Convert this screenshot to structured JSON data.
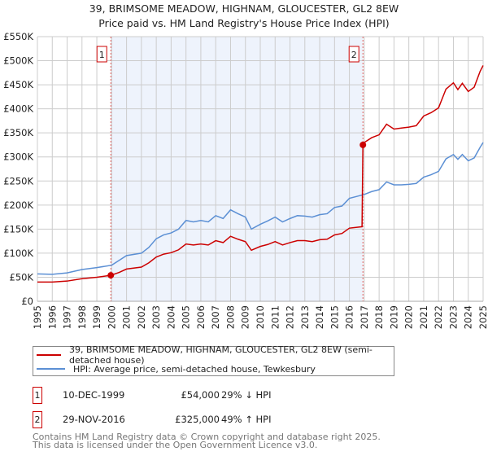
{
  "chart_data": {
    "type": "line",
    "title": "39, BRIMSOME MEADOW, HIGHNAM, GLOUCESTER, GL2 8EW",
    "subtitle": "Price paid vs. HM Land Registry's House Price Index (HPI)",
    "xlim": [
      1995,
      2025
    ],
    "ylim": [
      0,
      550000
    ],
    "x_ticks": [
      "1995",
      "1996",
      "1997",
      "1998",
      "1999",
      "2000",
      "2001",
      "2002",
      "2003",
      "2004",
      "2005",
      "2006",
      "2007",
      "2008",
      "2009",
      "2010",
      "2011",
      "2012",
      "2013",
      "2014",
      "2015",
      "2016",
      "2017",
      "2018",
      "2019",
      "2020",
      "2021",
      "2022",
      "2023",
      "2024",
      "2025"
    ],
    "y_ticks": [
      {
        "v": 0,
        "label": "£0"
      },
      {
        "v": 50000,
        "label": "£50K"
      },
      {
        "v": 100000,
        "label": "£100K"
      },
      {
        "v": 150000,
        "label": "£150K"
      },
      {
        "v": 200000,
        "label": "£200K"
      },
      {
        "v": 250000,
        "label": "£250K"
      },
      {
        "v": 300000,
        "label": "£300K"
      },
      {
        "v": 350000,
        "label": "£350K"
      },
      {
        "v": 400000,
        "label": "£400K"
      },
      {
        "v": 450000,
        "label": "£450K"
      },
      {
        "v": 500000,
        "label": "£500K"
      },
      {
        "v": 550000,
        "label": "£550K"
      }
    ],
    "grid": true,
    "shaded_range": [
      1999.94,
      2016.91
    ],
    "series": [
      {
        "name": "39, BRIMSOME MEADOW, HIGHNAM, GLOUCESTER, GL2 8EW (semi-detached house)",
        "color": "#cc0000",
        "x": [
          1995,
          1996,
          1997,
          1998,
          1999,
          1999.94,
          2000.5,
          2001,
          2002,
          2002.5,
          2003,
          2003.5,
          2004,
          2004.5,
          2005,
          2005.5,
          2006,
          2006.5,
          2007,
          2007.5,
          2008,
          2008.5,
          2009,
          2009.4,
          2010,
          2010.5,
          2011,
          2011.5,
          2012,
          2012.5,
          2013,
          2013.5,
          2014,
          2014.5,
          2015,
          2015.5,
          2016,
          2016.85,
          2016.91,
          2017,
          2017.5,
          2018,
          2018.5,
          2019,
          2019.5,
          2020,
          2020.5,
          2021,
          2021.5,
          2022,
          2022.5,
          2023,
          2023.3,
          2023.6,
          2024,
          2024.4,
          2024.8,
          2025
        ],
        "y": [
          40000,
          40000,
          42000,
          47000,
          50000,
          54000,
          60000,
          67000,
          71000,
          80000,
          92000,
          98000,
          101000,
          107000,
          119000,
          117000,
          119000,
          117000,
          126000,
          122000,
          135000,
          129000,
          124000,
          106000,
          114000,
          118000,
          124000,
          117000,
          122000,
          126000,
          126000,
          124000,
          128000,
          129000,
          138000,
          141000,
          152000,
          155000,
          325000,
          330000,
          340000,
          346000,
          368000,
          358000,
          360000,
          362000,
          365000,
          385000,
          392000,
          402000,
          441000,
          454000,
          440000,
          453000,
          436000,
          445000,
          478000,
          490000
        ]
      },
      {
        "name": "HPI: Average price, semi-detached house, Tewkesbury",
        "color": "#5b8fd4",
        "x": [
          1995,
          1996,
          1997,
          1998,
          1999,
          2000,
          2000.5,
          2001,
          2002,
          2002.5,
          2003,
          2003.5,
          2004,
          2004.5,
          2005,
          2005.5,
          2006,
          2006.5,
          2007,
          2007.5,
          2008,
          2008.5,
          2009,
          2009.4,
          2010,
          2010.5,
          2011,
          2011.5,
          2012,
          2012.5,
          2013,
          2013.5,
          2014,
          2014.5,
          2015,
          2015.5,
          2016,
          2016.5,
          2017,
          2017.5,
          2018,
          2018.5,
          2019,
          2019.5,
          2020,
          2020.5,
          2021,
          2021.5,
          2022,
          2022.5,
          2023,
          2023.3,
          2023.6,
          2024,
          2024.4,
          2024.8,
          2025
        ],
        "y": [
          57000,
          56000,
          59000,
          66000,
          70000,
          75000,
          85000,
          95000,
          100000,
          112000,
          130000,
          138000,
          142000,
          150000,
          168000,
          165000,
          168000,
          165000,
          178000,
          172000,
          190000,
          182000,
          175000,
          150000,
          160000,
          167000,
          175000,
          165000,
          172000,
          178000,
          177000,
          175000,
          180000,
          182000,
          195000,
          198000,
          214000,
          218000,
          222000,
          228000,
          232000,
          248000,
          242000,
          242000,
          243000,
          245000,
          258000,
          263000,
          270000,
          296000,
          305000,
          295000,
          305000,
          292000,
          298000,
          320000,
          330000
        ]
      }
    ],
    "annotations": [
      {
        "label": "1",
        "x": 1999.94,
        "y": 54000
      },
      {
        "label": "2",
        "x": 2016.91,
        "y": 325000
      }
    ]
  },
  "legend": {
    "red": "39, BRIMSOME MEADOW, HIGHNAM, GLOUCESTER, GL2 8EW (semi-detached house)",
    "blue": "HPI: Average price, semi-detached house, Tewkesbury"
  },
  "sales": [
    {
      "num": "1",
      "date": "10-DEC-1999",
      "price": "£54,000",
      "hpi": "29% ↓ HPI"
    },
    {
      "num": "2",
      "date": "29-NOV-2016",
      "price": "£325,000",
      "hpi": "49% ↑ HPI"
    }
  ],
  "footer": {
    "line1": "Contains HM Land Registry data © Crown copyright and database right 2025.",
    "line2": "This data is licensed under the Open Government Licence v3.0."
  }
}
